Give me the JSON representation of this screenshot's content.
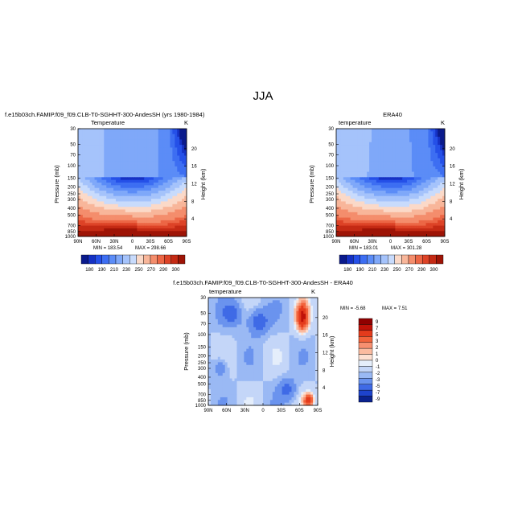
{
  "page_title": "JJA",
  "chart_data": [
    {
      "type": "heatmap",
      "id": "model",
      "title": "f.e15b03ch.FAMIP.f09_f09.CLB-T0-SGHHT-300-AndesSH (yrs 1980-1984)",
      "field_label": "Temperature",
      "units": "K",
      "ylabel": "Pressure (mb)",
      "y2label": "Height (km)",
      "x_ticks": [
        "90N",
        "60N",
        "30N",
        "0",
        "30S",
        "60S",
        "90S"
      ],
      "y_ticks": [
        "30",
        "50",
        "70",
        "100",
        "150",
        "200",
        "250",
        "300",
        "400",
        "500",
        "700",
        "850",
        "1000"
      ],
      "y2_ticks": [
        "20",
        "16",
        "12",
        "8",
        "4"
      ],
      "min_label": "MIN = 183.54",
      "max_label": "MAX = 298.66",
      "colorbar_labels": [
        "180",
        "190",
        "210",
        "230",
        "250",
        "270",
        "290",
        "300"
      ]
    },
    {
      "type": "heatmap",
      "id": "obs",
      "title": "ERA40",
      "field_label": "temperature",
      "units": "K",
      "ylabel": "Pressure (mb)",
      "y2label": "Height (km)",
      "x_ticks": [
        "90N",
        "60N",
        "30N",
        "0",
        "30S",
        "60S",
        "90S"
      ],
      "y_ticks": [
        "30",
        "50",
        "70",
        "100",
        "150",
        "200",
        "250",
        "300",
        "400",
        "500",
        "700",
        "850",
        "1000"
      ],
      "y2_ticks": [
        "20",
        "16",
        "12",
        "8",
        "4"
      ],
      "min_label": "MIN = 183.01",
      "max_label": "MAX = 301.28",
      "colorbar_labels": [
        "180",
        "190",
        "210",
        "230",
        "250",
        "270",
        "290",
        "300"
      ]
    },
    {
      "type": "heatmap",
      "id": "diff",
      "title": "f.e15b03ch.FAMIP.f09_f09.CLB-T0-SGHHT-300-AndesSH - ERA40",
      "field_label": "temperature",
      "units": "K",
      "ylabel": "Pressure (mb)",
      "y2label": "Height (km)",
      "x_ticks": [
        "90N",
        "60N",
        "30N",
        "0",
        "30S",
        "60S",
        "90S"
      ],
      "y_ticks": [
        "30",
        "50",
        "70",
        "100",
        "150",
        "200",
        "250",
        "300",
        "400",
        "500",
        "700",
        "850",
        "1000"
      ],
      "y2_ticks": [
        "20",
        "16",
        "12",
        "8",
        "4"
      ],
      "min_label": "MIN = -5.68",
      "max_label": "MAX = 7.51",
      "colorbar_labels": [
        "9",
        "7",
        "5",
        "3",
        "2",
        "1",
        "0",
        "-1",
        "-2",
        "-3",
        "-5",
        "-7",
        "-9"
      ]
    }
  ],
  "colors": {
    "abs_scale": [
      "#0a1a8c",
      "#1531c4",
      "#2550e8",
      "#3d6ef2",
      "#5b8cf7",
      "#7fa8f9",
      "#a5c3fb",
      "#c8dbfc",
      "#fbd9c8",
      "#f8b69a",
      "#f48d6c",
      "#ec6645",
      "#dd4327",
      "#c42a14",
      "#9e1406"
    ],
    "diff_scale": [
      "#900000",
      "#c01208",
      "#e43b1c",
      "#f2643c",
      "#f79070",
      "#fbbba0",
      "#fde0d2",
      "#e5eefb",
      "#c4d6f8",
      "#9ab9f4",
      "#6a93ee",
      "#3f6ae6",
      "#1d43cc",
      "#0a228e"
    ]
  }
}
